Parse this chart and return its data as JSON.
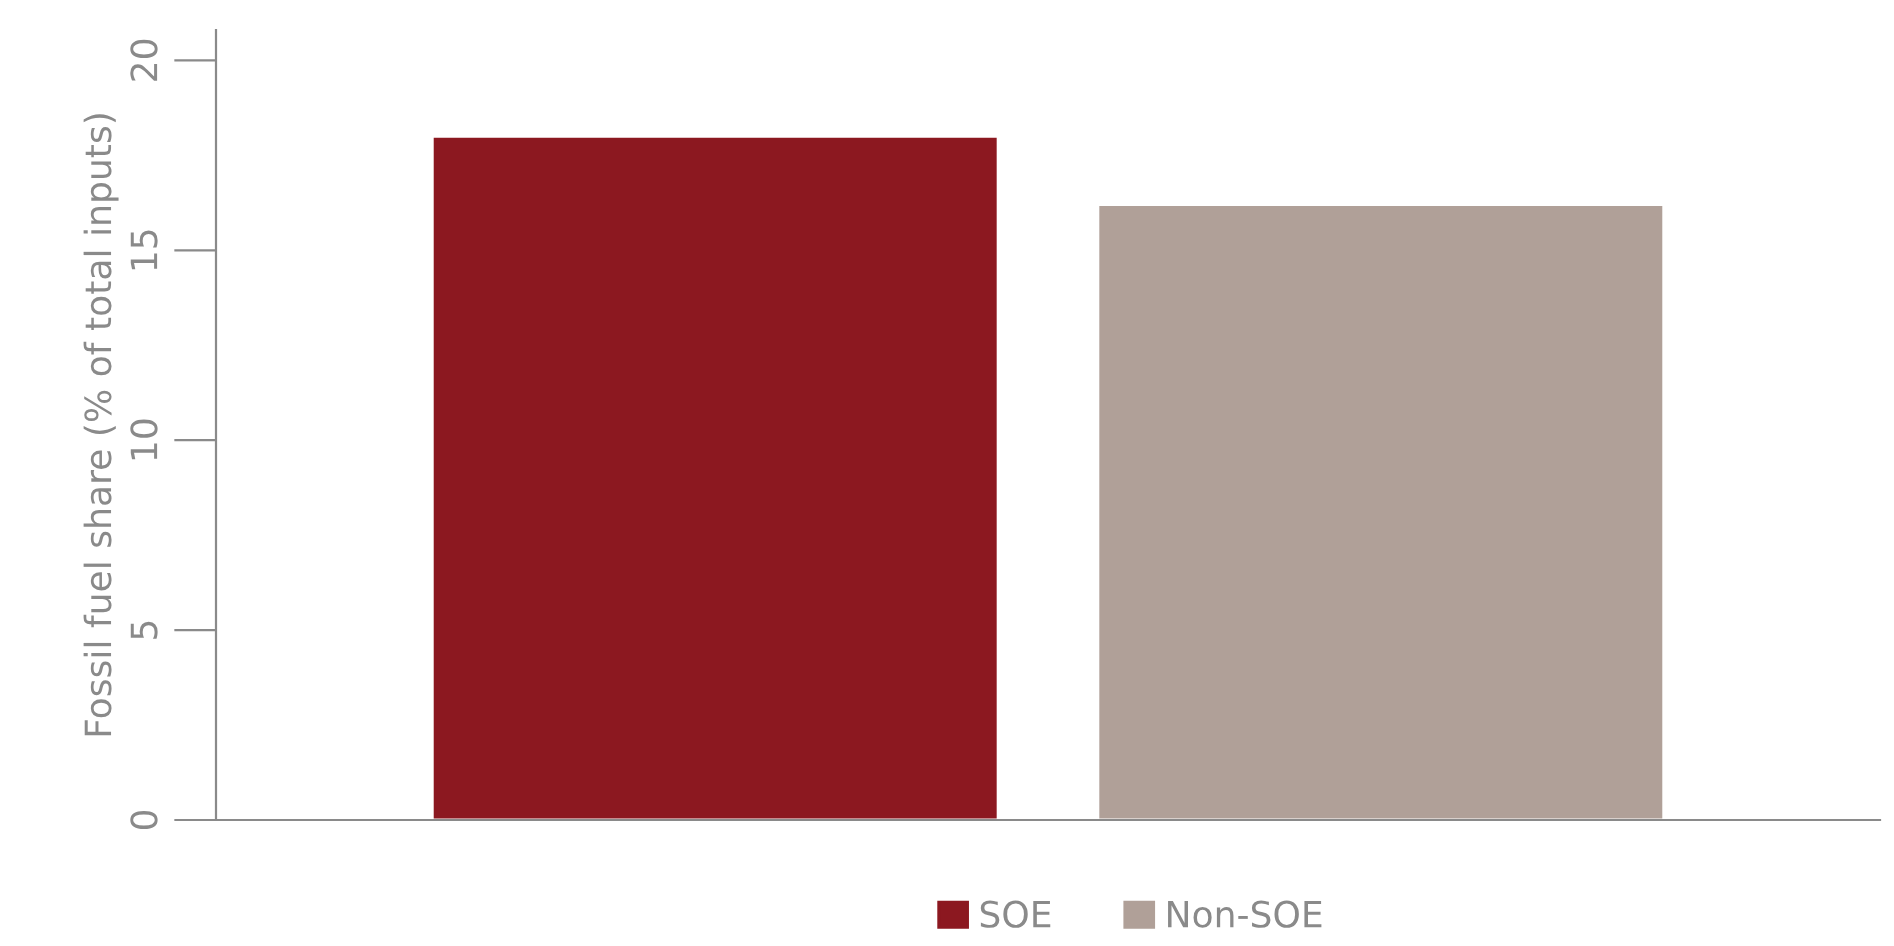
{
  "chart_data": {
    "type": "bar",
    "ylabel": "Fossil fuel share (% of total inputs)",
    "categories": [
      null
    ],
    "series": [
      {
        "name": "SOE",
        "color": "#8c1820",
        "values": [
          18.0
        ]
      },
      {
        "name": "Non-SOE",
        "color": "#b0a098",
        "values": [
          16.2
        ]
      }
    ],
    "ylim": [
      0,
      20.8
    ],
    "yticks": [
      0,
      5,
      10,
      15,
      20
    ],
    "grid": false,
    "legend": "bottom"
  }
}
